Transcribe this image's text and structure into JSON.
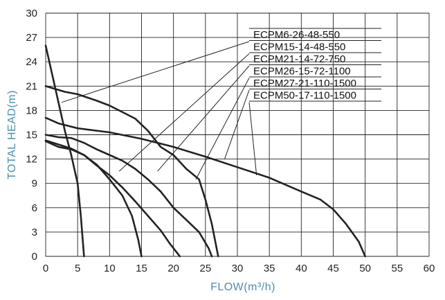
{
  "chart_data": {
    "type": "line",
    "xlabel": "FLOW(m³/h)",
    "ylabel": "TOTAL HEAD(m)",
    "xlim": [
      0,
      60
    ],
    "ylim": [
      0,
      30
    ],
    "x_ticks": [
      0,
      5,
      10,
      15,
      20,
      25,
      30,
      35,
      40,
      45,
      50,
      55,
      60
    ],
    "y_ticks": [
      0,
      3,
      6,
      9,
      12,
      15,
      18,
      21,
      24,
      27,
      30
    ],
    "grid": true,
    "legend_position": "top-right",
    "series": [
      {
        "name": "ECPM6-26-48-550",
        "x": [
          0,
          1,
          2,
          3,
          4,
          5,
          5.5,
          5.8,
          6
        ],
        "y": [
          26,
          22.5,
          19,
          15.5,
          12.5,
          9,
          5,
          2,
          0
        ],
        "leader": [
          2.5,
          19
        ]
      },
      {
        "name": "ECPM15-14-48-550",
        "x": [
          0,
          2,
          4,
          6,
          8,
          10,
          12,
          13.5,
          14.5,
          15
        ],
        "y": [
          14.2,
          13.5,
          13.2,
          12.5,
          11.3,
          9.5,
          7.5,
          5,
          2,
          0
        ],
        "leader": [
          11.5,
          10.5
        ]
      },
      {
        "name": "ECPM21-14-72-750",
        "x": [
          0,
          2,
          4,
          6,
          8,
          10,
          12,
          14,
          16,
          18,
          19.5,
          20.5,
          21
        ],
        "y": [
          14.3,
          13.8,
          13.3,
          12.5,
          11.2,
          10,
          8.5,
          6.8,
          5,
          3.2,
          1.5,
          0.5,
          0
        ],
        "leader": [
          17.5,
          10.5
        ]
      },
      {
        "name": "ECPM26-15-72-1100",
        "x": [
          0,
          2,
          4,
          6,
          8,
          10,
          12,
          14,
          16,
          18,
          20,
          22,
          24,
          25.5,
          26
        ],
        "y": [
          15,
          14.7,
          14.6,
          14,
          13.2,
          12.5,
          11.8,
          10.8,
          9.5,
          8,
          6,
          4.5,
          3,
          1,
          0
        ],
        "leader": [
          23.5,
          9.5
        ]
      },
      {
        "name": "ECPM27-21-110-1500",
        "x": [
          0,
          3,
          5,
          8,
          10,
          12,
          14,
          16,
          18,
          20,
          22,
          24,
          25,
          26,
          27
        ],
        "y": [
          21,
          20.3,
          20,
          19.2,
          18.6,
          17.8,
          17,
          15.5,
          13.5,
          12.5,
          10.8,
          9.5,
          7,
          4,
          0
        ],
        "leader": [
          28,
          12
        ]
      },
      {
        "name": "ECPM50-17-110-1500",
        "x": [
          0,
          2,
          5,
          10,
          15,
          20,
          25,
          30,
          35,
          40,
          43,
          45,
          47,
          49,
          50
        ],
        "y": [
          17.1,
          16.4,
          15.8,
          15.3,
          14.5,
          13.5,
          12.3,
          11,
          9.7,
          8,
          7,
          5.8,
          4,
          1.8,
          0
        ],
        "leader": [
          33,
          10
        ]
      }
    ]
  }
}
